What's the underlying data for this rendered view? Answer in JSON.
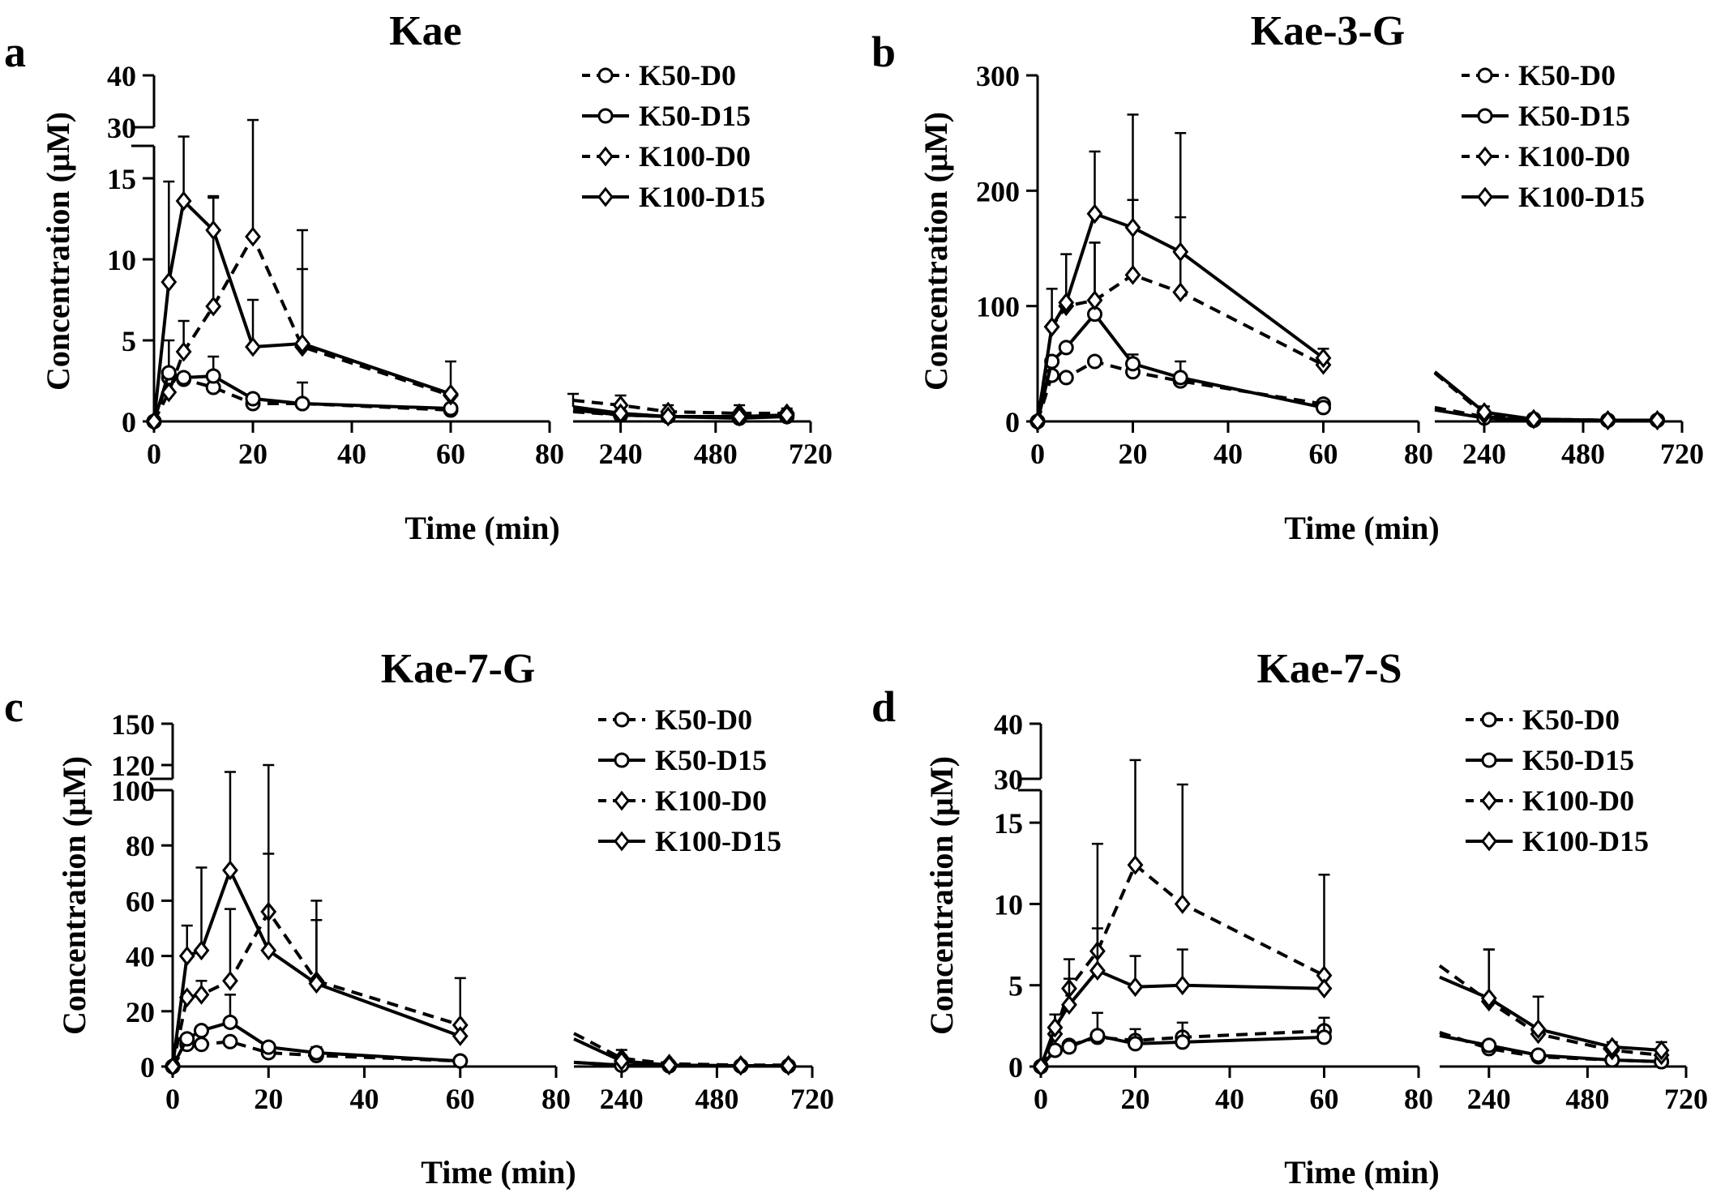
{
  "figure": {
    "panels": [
      "a",
      "b",
      "c",
      "d"
    ]
  },
  "chart_data": [
    {
      "panel_letter": "a",
      "type": "line",
      "title": "Kae",
      "xlabel": "Time (min)",
      "ylabel": "Concentration (µM)",
      "x_segments": [
        {
          "range": [
            0,
            80
          ],
          "ticks": [
            0,
            20,
            40,
            60,
            80
          ],
          "tick_labels": [
            "0",
            "20",
            "40",
            "60",
            "80"
          ]
        },
        {
          "range": [
            120,
            720
          ],
          "ticks": [
            240,
            480,
            720
          ],
          "tick_labels": [
            "240",
            "480",
            "720"
          ]
        }
      ],
      "y_segments": [
        {
          "range": [
            0,
            17
          ],
          "ticks": [
            0,
            5,
            10,
            15
          ],
          "tick_labels": [
            "0",
            "5",
            "10",
            "15"
          ]
        },
        {
          "range": [
            30,
            40
          ],
          "ticks": [
            30,
            40
          ],
          "tick_labels": [
            "30",
            "40"
          ]
        }
      ],
      "legend": {
        "placement": "top-right",
        "entries": [
          "K50-D0",
          "K50-D15",
          "K100-D0",
          "K100-D15"
        ]
      },
      "series": [
        {
          "name": "K50-D0",
          "marker": "circle",
          "line": "dashed",
          "x": [
            0,
            3,
            6,
            12,
            20,
            30,
            60,
            120,
            240,
            360,
            540,
            660
          ],
          "y": [
            0,
            2.7,
            2.6,
            2.1,
            1.1,
            1.1,
            0.7,
            0.6,
            0.4,
            0.3,
            0.3,
            0.4
          ],
          "err": [
            0,
            0,
            0,
            0,
            0,
            0,
            0,
            0,
            0,
            0,
            0,
            0
          ]
        },
        {
          "name": "K50-D15",
          "marker": "circle",
          "line": "solid",
          "x": [
            0,
            3,
            6,
            12,
            20,
            30,
            60,
            120,
            240,
            360,
            540,
            660
          ],
          "y": [
            0,
            3.0,
            2.7,
            2.8,
            1.4,
            1.1,
            0.8,
            0.7,
            0.4,
            0.3,
            0.2,
            0.3
          ],
          "err": [
            0,
            2.0,
            0,
            1.2,
            0,
            1.3,
            0,
            0,
            0,
            0,
            0,
            0
          ]
        },
        {
          "name": "K100-D0",
          "marker": "diamond",
          "line": "dashed",
          "x": [
            0,
            3,
            6,
            12,
            20,
            30,
            60,
            120,
            240,
            360,
            540,
            660
          ],
          "y": [
            0,
            1.8,
            4.3,
            7.1,
            11.4,
            4.6,
            1.6,
            1.3,
            1.0,
            0.6,
            0.5,
            0.5
          ],
          "err": [
            0,
            0,
            1.9,
            6.7,
            20.0,
            4.8,
            0,
            0,
            0.6,
            0.4,
            0.5,
            0.3
          ]
        },
        {
          "name": "K100-D15",
          "marker": "diamond",
          "line": "solid",
          "x": [
            0,
            3,
            6,
            12,
            20,
            30,
            60,
            120,
            240,
            360,
            540,
            660
          ],
          "y": [
            0,
            8.6,
            13.6,
            11.8,
            4.6,
            4.8,
            1.7,
            0.9,
            0.5,
            0.3,
            0.3,
            0.4
          ],
          "err": [
            0,
            6.2,
            4.0,
            2.1,
            2.9,
            7.0,
            2.0,
            0.8,
            0,
            0,
            0,
            0
          ]
        }
      ]
    },
    {
      "panel_letter": "b",
      "type": "line",
      "title": "Kae-3-G",
      "xlabel": "Time (min)",
      "ylabel": "Concentration (µM)",
      "x_segments": [
        {
          "range": [
            0,
            80
          ],
          "ticks": [
            0,
            20,
            40,
            60,
            80
          ],
          "tick_labels": [
            "0",
            "20",
            "40",
            "60",
            "80"
          ]
        },
        {
          "range": [
            120,
            720
          ],
          "ticks": [
            240,
            480,
            720
          ],
          "tick_labels": [
            "240",
            "480",
            "720"
          ]
        }
      ],
      "y_segments": [
        {
          "range": [
            0,
            300
          ],
          "ticks": [
            0,
            100,
            200,
            300
          ],
          "tick_labels": [
            "0",
            "100",
            "200",
            "300"
          ]
        }
      ],
      "legend": {
        "placement": "top-right",
        "entries": [
          "K50-D0",
          "K50-D15",
          "K100-D0",
          "K100-D15"
        ]
      },
      "series": [
        {
          "name": "K50-D0",
          "marker": "circle",
          "line": "dashed",
          "x": [
            0,
            3,
            6,
            12,
            20,
            30,
            60,
            120,
            240,
            360,
            540,
            660
          ],
          "y": [
            0,
            40,
            38,
            52,
            43,
            35,
            15,
            12,
            4,
            2,
            1,
            1
          ],
          "err": [
            0,
            0,
            0,
            0,
            0,
            0,
            0,
            0,
            0,
            0,
            0,
            0
          ]
        },
        {
          "name": "K50-D15",
          "marker": "circle",
          "line": "solid",
          "x": [
            0,
            3,
            6,
            12,
            20,
            30,
            60,
            120,
            240,
            360,
            540,
            660
          ],
          "y": [
            0,
            52,
            64,
            93,
            50,
            38,
            12,
            10,
            3,
            1,
            1,
            1
          ],
          "err": [
            0,
            0,
            0,
            62,
            8,
            14,
            0,
            0,
            0,
            0,
            0,
            0
          ]
        },
        {
          "name": "K100-D0",
          "marker": "diamond",
          "line": "dashed",
          "x": [
            0,
            3,
            6,
            12,
            20,
            30,
            60,
            120,
            240,
            360,
            540,
            660
          ],
          "y": [
            0,
            82,
            100,
            105,
            127,
            112,
            49,
            42,
            6,
            2,
            1,
            1
          ],
          "err": [
            0,
            0,
            0,
            50,
            65,
            65,
            0,
            0,
            0,
            0,
            0,
            0
          ]
        },
        {
          "name": "K100-D15",
          "marker": "diamond",
          "line": "solid",
          "x": [
            0,
            3,
            6,
            12,
            20,
            30,
            60,
            120,
            240,
            360,
            540,
            660
          ],
          "y": [
            0,
            82,
            103,
            180,
            168,
            147,
            55,
            43,
            8,
            2,
            1,
            1
          ],
          "err": [
            0,
            33,
            42,
            54,
            98,
            103,
            8,
            0,
            5,
            0,
            0,
            0
          ]
        }
      ]
    },
    {
      "panel_letter": "c",
      "type": "line",
      "title": "Kae-7-G",
      "xlabel": "Time (min)",
      "ylabel": "Concentration (µM)",
      "x_segments": [
        {
          "range": [
            0,
            80
          ],
          "ticks": [
            0,
            20,
            40,
            60,
            80
          ],
          "tick_labels": [
            "0",
            "20",
            "40",
            "60",
            "80"
          ]
        },
        {
          "range": [
            120,
            720
          ],
          "ticks": [
            240,
            480,
            720
          ],
          "tick_labels": [
            "240",
            "480",
            "720"
          ]
        }
      ],
      "y_segments": [
        {
          "range": [
            0,
            100
          ],
          "ticks": [
            0,
            20,
            40,
            60,
            80,
            100
          ],
          "tick_labels": [
            "0",
            "20",
            "40",
            "60",
            "80",
            "100"
          ]
        },
        {
          "range": [
            110,
            150
          ],
          "ticks": [
            120,
            150
          ],
          "tick_labels": [
            "120",
            "150"
          ]
        }
      ],
      "legend": {
        "placement": "top-right",
        "entries": [
          "K50-D0",
          "K50-D15",
          "K100-D0",
          "K100-D15"
        ]
      },
      "series": [
        {
          "name": "K50-D0",
          "marker": "circle",
          "line": "dashed",
          "x": [
            0,
            3,
            6,
            12,
            20,
            30,
            60,
            120,
            240,
            360,
            540,
            660
          ],
          "y": [
            0,
            8,
            8,
            9,
            5,
            4,
            2,
            1.5,
            0.5,
            0.3,
            0.2,
            0.2
          ],
          "err": [
            0,
            0,
            0,
            0,
            0,
            0,
            0,
            0,
            0,
            0,
            0,
            0
          ]
        },
        {
          "name": "K50-D15",
          "marker": "circle",
          "line": "solid",
          "x": [
            0,
            3,
            6,
            12,
            20,
            30,
            60,
            120,
            240,
            360,
            540,
            660
          ],
          "y": [
            0,
            10,
            13,
            16,
            7,
            5,
            2,
            1.5,
            0.5,
            0.3,
            0.2,
            0.2
          ],
          "err": [
            0,
            0,
            0,
            10,
            0,
            2,
            0,
            0,
            0,
            0,
            0,
            0
          ]
        },
        {
          "name": "K100-D0",
          "marker": "diamond",
          "line": "dashed",
          "x": [
            0,
            3,
            6,
            12,
            20,
            30,
            60,
            120,
            240,
            360,
            540,
            660
          ],
          "y": [
            0,
            25,
            26,
            31,
            56,
            31,
            15,
            12,
            3,
            1,
            0.5,
            0.5
          ],
          "err": [
            0,
            0,
            5,
            26,
            21,
            22,
            17,
            0,
            3,
            0,
            0,
            0
          ]
        },
        {
          "name": "K100-D15",
          "marker": "diamond",
          "line": "solid",
          "x": [
            0,
            3,
            6,
            12,
            20,
            30,
            60,
            120,
            240,
            360,
            540,
            660
          ],
          "y": [
            0,
            40,
            42,
            71,
            42,
            30,
            11,
            10,
            2,
            0.5,
            0.3,
            0.3
          ],
          "err": [
            0,
            11,
            30,
            44,
            78,
            30,
            0,
            0,
            2,
            0,
            0,
            0
          ]
        }
      ]
    },
    {
      "panel_letter": "d",
      "type": "line",
      "title": "Kae-7-S",
      "xlabel": "Time (min)",
      "ylabel": "Concentration (µM)",
      "x_segments": [
        {
          "range": [
            0,
            80
          ],
          "ticks": [
            0,
            20,
            40,
            60,
            80
          ],
          "tick_labels": [
            "0",
            "20",
            "40",
            "60",
            "80"
          ]
        },
        {
          "range": [
            120,
            720
          ],
          "ticks": [
            240,
            480,
            720
          ],
          "tick_labels": [
            "240",
            "480",
            "720"
          ]
        }
      ],
      "y_segments": [
        {
          "range": [
            0,
            17
          ],
          "ticks": [
            0,
            5,
            10,
            15
          ],
          "tick_labels": [
            "0",
            "5",
            "10",
            "15"
          ]
        },
        {
          "range": [
            30,
            40
          ],
          "ticks": [
            30,
            40
          ],
          "tick_labels": [
            "30",
            "40"
          ]
        }
      ],
      "legend": {
        "placement": "top-right",
        "entries": [
          "K50-D0",
          "K50-D15",
          "K100-D0",
          "K100-D15"
        ]
      },
      "series": [
        {
          "name": "K50-D0",
          "marker": "circle",
          "line": "dashed",
          "x": [
            0,
            3,
            6,
            12,
            20,
            30,
            60,
            120,
            240,
            360,
            540,
            660
          ],
          "y": [
            0,
            1.0,
            1.3,
            1.8,
            1.6,
            1.8,
            2.2,
            2.1,
            1.1,
            0.6,
            0.4,
            0.3
          ],
          "err": [
            0,
            0,
            0,
            0,
            0,
            0,
            0,
            0,
            0,
            0,
            0,
            0
          ]
        },
        {
          "name": "K50-D15",
          "marker": "circle",
          "line": "solid",
          "x": [
            0,
            3,
            6,
            12,
            20,
            30,
            60,
            120,
            240,
            360,
            540,
            660
          ],
          "y": [
            0,
            1.0,
            1.2,
            1.9,
            1.4,
            1.5,
            1.8,
            1.9,
            1.3,
            0.7,
            0.4,
            0.3
          ],
          "err": [
            0,
            0,
            0,
            1.4,
            0.9,
            1.2,
            1.2,
            0,
            0,
            0,
            0,
            0
          ]
        },
        {
          "name": "K100-D0",
          "marker": "diamond",
          "line": "dashed",
          "x": [
            0,
            3,
            6,
            12,
            20,
            30,
            60,
            120,
            240,
            360,
            540,
            660
          ],
          "y": [
            0,
            2.0,
            4.8,
            7.1,
            12.4,
            10.0,
            5.6,
            6.2,
            4.0,
            2.0,
            1.0,
            0.7
          ],
          "err": [
            0,
            1.2,
            1.8,
            6.6,
            21.0,
            14.0,
            6.2,
            0,
            3.2,
            2.3,
            0.5,
            0.8
          ]
        },
        {
          "name": "K100-D15",
          "marker": "diamond",
          "line": "solid",
          "x": [
            0,
            3,
            6,
            12,
            20,
            30,
            60,
            120,
            240,
            360,
            540,
            660
          ],
          "y": [
            0,
            2.4,
            3.8,
            5.9,
            4.9,
            5.0,
            4.8,
            5.5,
            4.2,
            2.3,
            1.2,
            1.0
          ],
          "err": [
            0,
            0.8,
            1.6,
            2.6,
            1.9,
            2.2,
            0,
            0,
            3.0,
            0,
            0,
            0
          ]
        }
      ]
    }
  ]
}
